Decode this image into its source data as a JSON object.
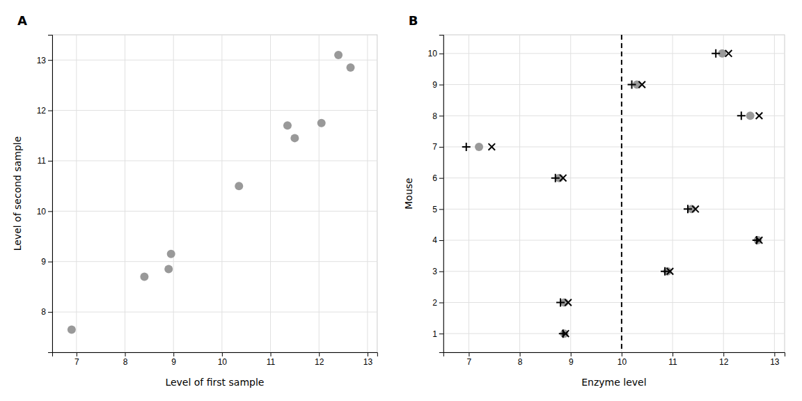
{
  "chart_data": [
    {
      "type": "scatter",
      "title": "A",
      "x": [
        6.9,
        8.4,
        8.9,
        8.95,
        10.35,
        11.35,
        11.5,
        12.05,
        12.4,
        12.65
      ],
      "y": [
        7.65,
        8.7,
        8.85,
        9.15,
        10.5,
        11.7,
        11.45,
        11.75,
        13.1,
        12.85
      ],
      "color": "#999999",
      "marker": "circle",
      "xlabel": "Level of first sample",
      "ylabel": "Level of second sample",
      "xlim": [
        6.5,
        13.2
      ],
      "ylim": [
        7.2,
        13.5
      ],
      "xticks": [
        7,
        8,
        9,
        10,
        11,
        12,
        13
      ],
      "yticks": [
        8,
        9,
        10,
        11,
        12,
        13
      ],
      "grid": true
    },
    {
      "type": "scatter",
      "title": "B",
      "y": [
        1,
        2,
        3,
        4,
        5,
        6,
        7,
        8,
        9,
        10
      ],
      "series": [
        {
          "color": "#999999",
          "marker": "circle",
          "x": [
            8.875,
            8.875,
            10.9,
            12.675,
            11.375,
            8.775,
            7.2,
            12.525,
            10.3,
            11.975
          ]
        },
        {
          "color": "#000000",
          "marker": "plus",
          "x": [
            8.85,
            8.8,
            10.85,
            12.65,
            11.3,
            8.7,
            6.95,
            12.35,
            10.2,
            11.85
          ]
        },
        {
          "color": "#000000",
          "marker": "x",
          "x": [
            8.9,
            8.95,
            10.95,
            12.7,
            11.45,
            8.85,
            7.45,
            12.7,
            10.4,
            12.1
          ]
        }
      ],
      "reference_lines": [
        {
          "x": 10.0,
          "color": "#000000",
          "line_style": "dashed"
        }
      ],
      "xlabel": "Enzyme level",
      "ylabel": "Mouse",
      "xlim": [
        6.5,
        13.2
      ],
      "ylim": [
        0.4,
        10.6
      ],
      "xticks": [
        7,
        8,
        9,
        10,
        11,
        12,
        13
      ],
      "yticks": [
        1,
        2,
        3,
        4,
        5,
        6,
        7,
        8,
        9,
        10
      ],
      "grid": true
    }
  ]
}
